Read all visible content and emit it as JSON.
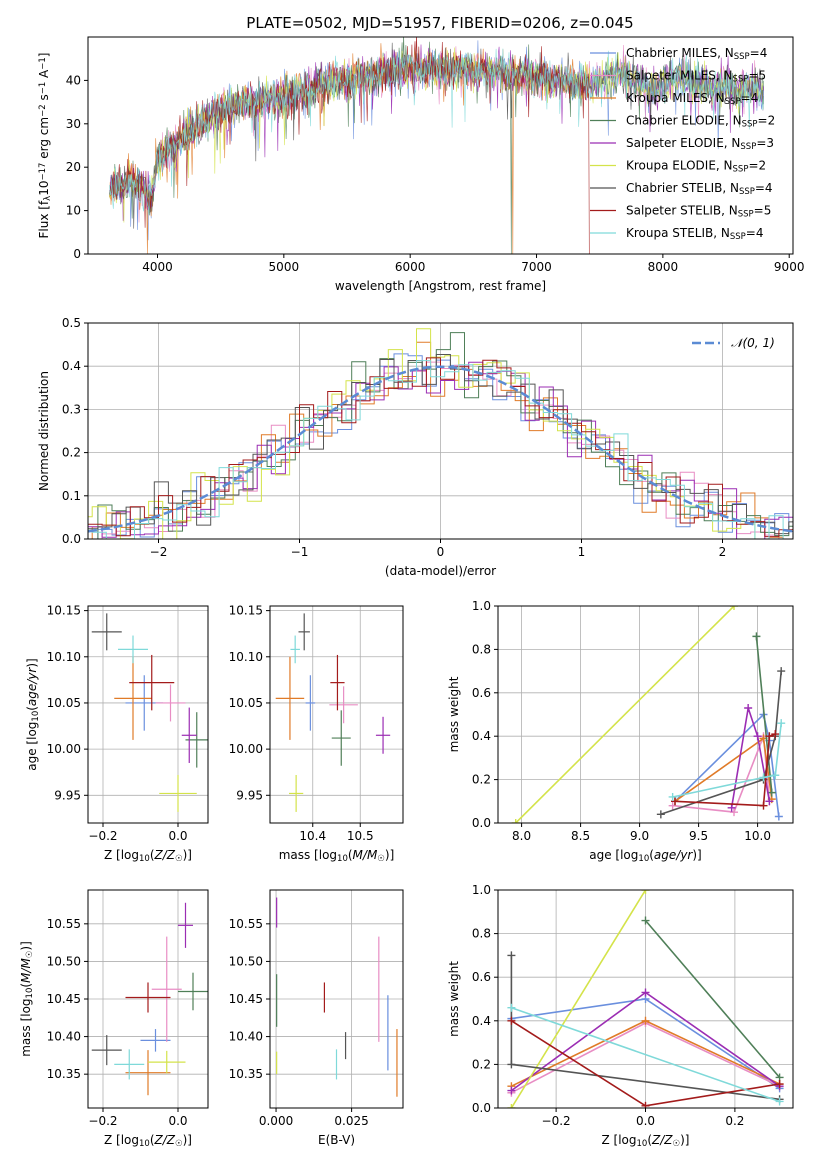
{
  "figure": {
    "title": "PLATE=0502, MJD=51957, FIBERID=0206, z=0.045"
  },
  "legend_spectrum": [
    {
      "base": "Chabrier MILES",
      "n": "4",
      "color": "#6a8fde"
    },
    {
      "base": "Salpeter MILES",
      "n": "5",
      "color": "#e88dc4"
    },
    {
      "base": "Kroupa MILES",
      "n": "4",
      "color": "#e07b28"
    },
    {
      "base": "Chabrier ELODIE",
      "n": "2",
      "color": "#4f7f58"
    },
    {
      "base": "Salpeter ELODIE",
      "n": "3",
      "color": "#9b2db3"
    },
    {
      "base": "Kroupa ELODIE",
      "n": "2",
      "color": "#d4e34a"
    },
    {
      "base": "Chabrier STELIB",
      "n": "4",
      "color": "#555555"
    },
    {
      "base": "Salpeter STELIB",
      "n": "5",
      "color": "#a31b1b"
    },
    {
      "base": "Kroupa STELIB",
      "n": "4",
      "color": "#7fd9d9"
    }
  ],
  "chart_data": [
    {
      "type": "line",
      "id": "spectrum",
      "xlabel": "wavelength [Angstrom, rest frame]",
      "ylabel": "Flux [f_λ 10^-17 erg cm^-2 s^-1 A^-1]",
      "xlim": [
        3450,
        9030
      ],
      "ylim": [
        0,
        50
      ],
      "xticks": [
        4000,
        5000,
        6000,
        7000,
        8000,
        9000
      ],
      "yticks": [
        0,
        10,
        20,
        30,
        40
      ],
      "grid": false,
      "legend": "right",
      "envelope_wavelength": [
        3620,
        3700,
        3800,
        3900,
        3950,
        4000,
        4100,
        4200,
        4300,
        4400,
        4500,
        4600,
        4700,
        4800,
        4900,
        5000,
        5100,
        5200,
        5300,
        5400,
        5500,
        5600,
        5700,
        5800,
        5900,
        6000,
        6100,
        6200,
        6300,
        6400,
        6500,
        6600,
        6700,
        6800,
        6900,
        7000,
        7100,
        7200,
        7300,
        7400,
        7500,
        7600,
        7700,
        7800,
        7900,
        8000,
        8100,
        8200,
        8300,
        8400,
        8500,
        8600,
        8700,
        8800
      ],
      "envelope_flux": [
        15,
        16,
        17,
        15,
        12,
        22,
        24,
        27,
        29,
        31,
        33,
        34,
        35,
        35,
        36,
        36,
        37,
        38,
        39,
        40,
        40,
        41,
        41,
        42,
        42,
        43,
        42,
        43,
        42,
        43,
        42,
        42,
        42,
        41,
        41,
        41,
        40,
        40,
        39,
        39,
        40,
        41,
        41,
        40,
        38,
        39,
        41,
        40,
        39,
        38,
        39,
        37,
        39,
        36
      ],
      "dropouts": [
        3920,
        6800,
        6810,
        7420
      ]
    },
    {
      "type": "bar",
      "id": "residual-histogram",
      "xlabel": "(data-model)/error",
      "ylabel": "Normed distribution",
      "xlim": [
        -2.5,
        2.5
      ],
      "ylim": [
        0,
        0.5
      ],
      "xticks": [
        -2,
        -1,
        0,
        1,
        2
      ],
      "yticks": [
        0,
        0.1,
        0.2,
        0.3,
        0.4,
        0.5
      ],
      "grid": true,
      "legend": "top-right",
      "legend_label": "𝒩(0, 1)",
      "reference": "standard normal density",
      "bin_width": 0.1
    },
    {
      "type": "scatter",
      "id": "age-vs-metallicity",
      "xlabel": "Z [log10(Z/Z☉)]",
      "ylabel": "age [log10(age/yr)]",
      "xlim": [
        -0.24,
        0.08
      ],
      "ylim": [
        9.92,
        10.155
      ],
      "xticks": [
        -0.2,
        0.0
      ],
      "yticks": [
        9.95,
        10.0,
        10.05,
        10.1,
        10.15
      ],
      "grid": true,
      "points": [
        {
          "x": -0.09,
          "y": 10.05,
          "xerr": 0.05,
          "yerr": 0.03,
          "model": 0
        },
        {
          "x": -0.02,
          "y": 10.05,
          "xerr": 0.04,
          "yerr": 0.02,
          "model": 1
        },
        {
          "x": -0.12,
          "y": 10.055,
          "xerr": 0.05,
          "yerr": 0.045,
          "model": 2
        },
        {
          "x": 0.05,
          "y": 10.01,
          "xerr": 0.03,
          "yerr": 0.03,
          "model": 3
        },
        {
          "x": 0.03,
          "y": 10.015,
          "xerr": 0.02,
          "yerr": 0.03,
          "model": 4
        },
        {
          "x": 0.0,
          "y": 9.952,
          "xerr": 0.05,
          "yerr": 0.02,
          "model": 5
        },
        {
          "x": -0.19,
          "y": 10.127,
          "xerr": 0.04,
          "yerr": 0.02,
          "model": 6
        },
        {
          "x": -0.07,
          "y": 10.072,
          "xerr": 0.06,
          "yerr": 0.03,
          "model": 7
        },
        {
          "x": -0.12,
          "y": 10.108,
          "xerr": 0.04,
          "yerr": 0.015,
          "model": 8
        }
      ]
    },
    {
      "type": "scatter",
      "id": "age-vs-mass",
      "xlabel": "mass [log10(M/M☉)]",
      "ylabel": "",
      "xlim": [
        10.31,
        10.59
      ],
      "ylim": [
        9.92,
        10.155
      ],
      "xticks": [
        10.4,
        10.5
      ],
      "yticks": [
        9.95,
        10.0,
        10.05,
        10.1,
        10.15
      ],
      "grid": true,
      "points": [
        {
          "x": 10.395,
          "y": 10.05,
          "xerr": 0.01,
          "yerr": 0.03,
          "model": 0
        },
        {
          "x": 10.465,
          "y": 10.048,
          "xerr": 0.03,
          "yerr": 0.02,
          "model": 1
        },
        {
          "x": 10.352,
          "y": 10.055,
          "xerr": 0.03,
          "yerr": 0.045,
          "model": 2
        },
        {
          "x": 10.46,
          "y": 10.012,
          "xerr": 0.02,
          "yerr": 0.03,
          "model": 3
        },
        {
          "x": 10.548,
          "y": 10.015,
          "xerr": 0.015,
          "yerr": 0.02,
          "model": 4
        },
        {
          "x": 10.365,
          "y": 9.952,
          "xerr": 0.015,
          "yerr": 0.02,
          "model": 5
        },
        {
          "x": 10.382,
          "y": 10.127,
          "xerr": 0.012,
          "yerr": 0.02,
          "model": 6
        },
        {
          "x": 10.452,
          "y": 10.072,
          "xerr": 0.015,
          "yerr": 0.03,
          "model": 7
        },
        {
          "x": 10.363,
          "y": 10.108,
          "xerr": 0.01,
          "yerr": 0.015,
          "model": 8
        }
      ]
    },
    {
      "type": "line",
      "id": "mass-weight-vs-age",
      "xlabel": "age [log10(age/yr)]",
      "ylabel": "mass weight",
      "xlim": [
        7.8,
        10.3
      ],
      "ylim": [
        0,
        1.0
      ],
      "xticks": [
        8.0,
        8.5,
        9.0,
        9.5,
        10.0
      ],
      "yticks": [
        0.0,
        0.2,
        0.4,
        0.6,
        0.8,
        1.0
      ],
      "grid": true,
      "series": [
        {
          "model": 0,
          "x": [
            9.3,
            10.05,
            10.1,
            10.18
          ],
          "y": [
            0.1,
            0.5,
            0.38,
            0.03
          ]
        },
        {
          "model": 1,
          "x": [
            9.28,
            9.8,
            10.05,
            10.1
          ],
          "y": [
            0.08,
            0.05,
            0.4,
            0.1
          ]
        },
        {
          "model": 2,
          "x": [
            9.3,
            10.05,
            10.12
          ],
          "y": [
            0.1,
            0.39,
            0.11
          ]
        },
        {
          "model": 3,
          "x": [
            9.99,
            10.12
          ],
          "y": [
            0.86,
            0.14
          ]
        },
        {
          "model": 4,
          "x": [
            9.78,
            9.92,
            10.0,
            10.1
          ],
          "y": [
            0.07,
            0.53,
            0.4,
            0.1
          ]
        },
        {
          "model": 5,
          "x": [
            7.95,
            9.8
          ],
          "y": [
            0.0,
            1.0
          ]
        },
        {
          "model": 6,
          "x": [
            9.18,
            10.05,
            10.15,
            10.2
          ],
          "y": [
            0.04,
            0.2,
            0.4,
            0.7
          ]
        },
        {
          "model": 7,
          "x": [
            9.3,
            10.05,
            10.1,
            10.15
          ],
          "y": [
            0.1,
            0.08,
            0.4,
            0.41
          ]
        },
        {
          "model": 8,
          "x": [
            9.28,
            10.05,
            10.15,
            10.2
          ],
          "y": [
            0.12,
            0.21,
            0.22,
            0.46
          ]
        }
      ]
    },
    {
      "type": "scatter",
      "id": "mass-vs-metallicity",
      "xlabel": "Z [log10(Z/Z☉)]",
      "ylabel": "mass [log10(M/M☉)]",
      "xlim": [
        -0.24,
        0.08
      ],
      "ylim": [
        10.305,
        10.595
      ],
      "xticks": [
        -0.2,
        0.0
      ],
      "yticks": [
        10.35,
        10.4,
        10.45,
        10.5,
        10.55
      ],
      "grid": true,
      "points": [
        {
          "x": -0.06,
          "y": 10.395,
          "xerr": 0.04,
          "yerr": 0.015,
          "model": 0
        },
        {
          "x": -0.03,
          "y": 10.463,
          "xerr": 0.04,
          "yerr": 0.07,
          "model": 1
        },
        {
          "x": -0.08,
          "y": 10.352,
          "xerr": 0.06,
          "yerr": 0.03,
          "model": 2
        },
        {
          "x": 0.04,
          "y": 10.46,
          "xerr": 0.04,
          "yerr": 0.025,
          "model": 3
        },
        {
          "x": 0.02,
          "y": 10.548,
          "xerr": 0.02,
          "yerr": 0.03,
          "model": 4
        },
        {
          "x": -0.03,
          "y": 10.366,
          "xerr": 0.05,
          "yerr": 0.015,
          "model": 5
        },
        {
          "x": -0.19,
          "y": 10.382,
          "xerr": 0.04,
          "yerr": 0.02,
          "model": 6
        },
        {
          "x": -0.08,
          "y": 10.452,
          "xerr": 0.06,
          "yerr": 0.02,
          "model": 7
        },
        {
          "x": -0.13,
          "y": 10.363,
          "xerr": 0.04,
          "yerr": 0.02,
          "model": 8
        }
      ]
    },
    {
      "type": "scatter",
      "id": "mass-vs-extinction",
      "xlabel": "E(B-V)",
      "ylabel": "",
      "xlim": [
        -0.002,
        0.042
      ],
      "ylim": [
        10.305,
        10.595
      ],
      "xticks": [
        0.0,
        0.025
      ],
      "yticks": [
        10.35,
        10.4,
        10.45,
        10.5,
        10.55
      ],
      "grid": true,
      "points": [
        {
          "x": 0.037,
          "y": 10.405,
          "xerr": 0.0,
          "yerr": 0.05,
          "model": 0
        },
        {
          "x": 0.034,
          "y": 10.463,
          "xerr": 0.0,
          "yerr": 0.07,
          "model": 1
        },
        {
          "x": 0.04,
          "y": 10.365,
          "xerr": 0.0,
          "yerr": 0.045,
          "model": 2
        },
        {
          "x": 0.0002,
          "y": 10.448,
          "xerr": 0.0,
          "yerr": 0.035,
          "model": 3
        },
        {
          "x": 0.0002,
          "y": 10.565,
          "xerr": 0.0,
          "yerr": 0.02,
          "model": 4
        },
        {
          "x": 0.0002,
          "y": 10.365,
          "xerr": 0.0,
          "yerr": 0.015,
          "model": 5
        },
        {
          "x": 0.023,
          "y": 10.388,
          "xerr": 0.0,
          "yerr": 0.018,
          "model": 6
        },
        {
          "x": 0.016,
          "y": 10.452,
          "xerr": 0.0,
          "yerr": 0.02,
          "model": 7
        },
        {
          "x": 0.02,
          "y": 10.363,
          "xerr": 0.0,
          "yerr": 0.02,
          "model": 8
        }
      ]
    },
    {
      "type": "line",
      "id": "mass-weight-vs-metallicity",
      "xlabel": "Z [log10(Z/Z☉)]",
      "ylabel": "mass weight",
      "xlim": [
        -0.33,
        0.33
      ],
      "ylim": [
        0,
        1.0
      ],
      "xticks": [
        -0.2,
        0.0,
        0.2
      ],
      "yticks": [
        0.0,
        0.2,
        0.4,
        0.6,
        0.8,
        1.0
      ],
      "grid": true,
      "series": [
        {
          "model": 0,
          "x": [
            -0.3,
            0.0,
            0.3
          ],
          "y": [
            0.41,
            0.5,
            0.09
          ]
        },
        {
          "model": 1,
          "x": [
            -0.3,
            0.0,
            0.3
          ],
          "y": [
            0.07,
            0.39,
            0.1
          ]
        },
        {
          "model": 2,
          "x": [
            -0.3,
            0.0,
            0.3
          ],
          "y": [
            0.1,
            0.4,
            0.11
          ]
        },
        {
          "model": 3,
          "x": [
            0.0,
            0.3
          ],
          "y": [
            0.86,
            0.14
          ]
        },
        {
          "model": 4,
          "x": [
            -0.3,
            0.0,
            0.3
          ],
          "y": [
            0.08,
            0.53,
            0.1
          ]
        },
        {
          "model": 5,
          "x": [
            -0.3,
            0.0
          ],
          "y": [
            0.0,
            1.0
          ]
        },
        {
          "model": 6,
          "x": [
            -0.3,
            -0.3,
            0.3
          ],
          "y": [
            0.7,
            0.2,
            0.04
          ]
        },
        {
          "model": 7,
          "x": [
            -0.3,
            0.0,
            0.3
          ],
          "y": [
            0.4,
            0.01,
            0.11
          ]
        },
        {
          "model": 8,
          "x": [
            -0.3,
            0.3
          ],
          "y": [
            0.46,
            0.03
          ]
        }
      ]
    }
  ]
}
